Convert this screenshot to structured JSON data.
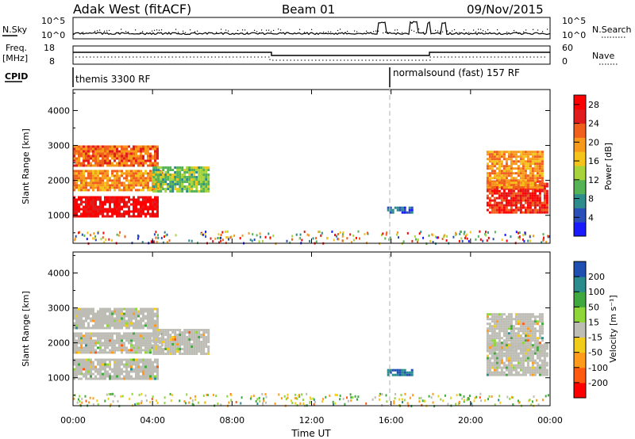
{
  "header": {
    "station": "Adak West (fitACF)",
    "beam": "Beam 01",
    "date": "09/Nov/2015"
  },
  "noise_panel": {
    "left_label": "N.Sky",
    "left_ticks": [
      "10^5",
      "10^0"
    ],
    "right_label": "N.Search",
    "right_ticks": [
      "10^5",
      "10^0"
    ]
  },
  "freq_panel": {
    "left_label": "Freq.",
    "left_unit": "[MHz]",
    "left_ticks": [
      "18",
      "8"
    ],
    "right_label": "Nave",
    "right_ticks": [
      "60",
      "0"
    ]
  },
  "cpid": {
    "label": "CPID",
    "segments": [
      {
        "start_hour": 0,
        "text": "themis 3300 RF"
      },
      {
        "start_hour": 16,
        "text": "normalsound (fast) 157 RF"
      }
    ]
  },
  "colors": {
    "power_scale": [
      "#1a1aff",
      "#2a4fb8",
      "#2e8c8c",
      "#55b255",
      "#a6d43a",
      "#f4c41a",
      "#f79a1c",
      "#f0601c",
      "#e01c1c",
      "#ff0000"
    ],
    "velocity_scale": [
      "#ff0000",
      "#ff5a10",
      "#ff9a1a",
      "#f2cc1a",
      "#bdbdb5",
      "#8fd63a",
      "#3fa83f",
      "#2a8c8c",
      "#1f4fb0"
    ],
    "ground_scatter": "#bdbdb5",
    "marker_line": "#bfbfbf"
  },
  "chart_data": [
    {
      "type": "heatmap",
      "title": "Power",
      "xlabel": "Time UT",
      "ylabel": "Slant Range [km]",
      "xlim": [
        0,
        24
      ],
      "ylim": [
        200,
        4600
      ],
      "x_ticks": [
        "00:00",
        "04:00",
        "08:00",
        "12:00",
        "16:00",
        "20:00",
        "00:00"
      ],
      "y_ticks": [
        1000,
        2000,
        3000,
        4000
      ],
      "colorbar": {
        "label": "Power [dB]",
        "ticks": [
          4,
          8,
          12,
          16,
          20,
          24,
          28
        ],
        "range": [
          0,
          30
        ]
      },
      "regions": [
        {
          "t0": 0.0,
          "t1": 4.2,
          "r0": 1000,
          "r1": 1550,
          "value": 28
        },
        {
          "t0": 0.0,
          "t1": 4.5,
          "r0": 1700,
          "r1": 2300,
          "value": 20
        },
        {
          "t0": 0.0,
          "t1": 4.2,
          "r0": 2400,
          "r1": 3000,
          "value": 22
        },
        {
          "t0": 4.0,
          "t1": 6.8,
          "r0": 1700,
          "r1": 2400,
          "value": 12
        },
        {
          "t0": 15.8,
          "t1": 17.0,
          "r0": 1050,
          "r1": 1250,
          "value": 5
        },
        {
          "t0": 20.8,
          "t1": 23.8,
          "r0": 1100,
          "r1": 2000,
          "value": 26
        },
        {
          "t0": 20.8,
          "t1": 23.6,
          "r0": 1800,
          "r1": 2850,
          "value": 20
        }
      ]
    },
    {
      "type": "heatmap",
      "title": "Velocity",
      "xlabel": "Time UT",
      "ylabel": "Slant Range [km]",
      "xlim": [
        0,
        24
      ],
      "ylim": [
        200,
        4600
      ],
      "x_ticks": [
        "00:00",
        "04:00",
        "08:00",
        "12:00",
        "16:00",
        "20:00",
        "00:00"
      ],
      "y_ticks": [
        1000,
        2000,
        3000,
        4000
      ],
      "colorbar": {
        "label": "Velocity [m s⁻¹]",
        "ticks": [
          200,
          100,
          50,
          15,
          -15,
          -50,
          -100,
          -200
        ],
        "range": [
          -250,
          250
        ]
      },
      "regions": [
        {
          "t0": 0.0,
          "t1": 4.2,
          "r0": 1000,
          "r1": 1550,
          "value": 0
        },
        {
          "t0": 0.0,
          "t1": 4.5,
          "r0": 1700,
          "r1": 2300,
          "value": 0
        },
        {
          "t0": 0.0,
          "t1": 4.2,
          "r0": 2400,
          "r1": 3000,
          "value": 0
        },
        {
          "t0": 4.0,
          "t1": 6.8,
          "r0": 1700,
          "r1": 2400,
          "value": 0
        },
        {
          "t0": 15.8,
          "t1": 17.0,
          "r0": 1050,
          "r1": 1250,
          "value": 200
        },
        {
          "t0": 20.8,
          "t1": 23.8,
          "r0": 1100,
          "r1": 2000,
          "value": 0
        },
        {
          "t0": 20.8,
          "t1": 23.6,
          "r0": 1800,
          "r1": 2850,
          "value": 0
        }
      ]
    }
  ]
}
